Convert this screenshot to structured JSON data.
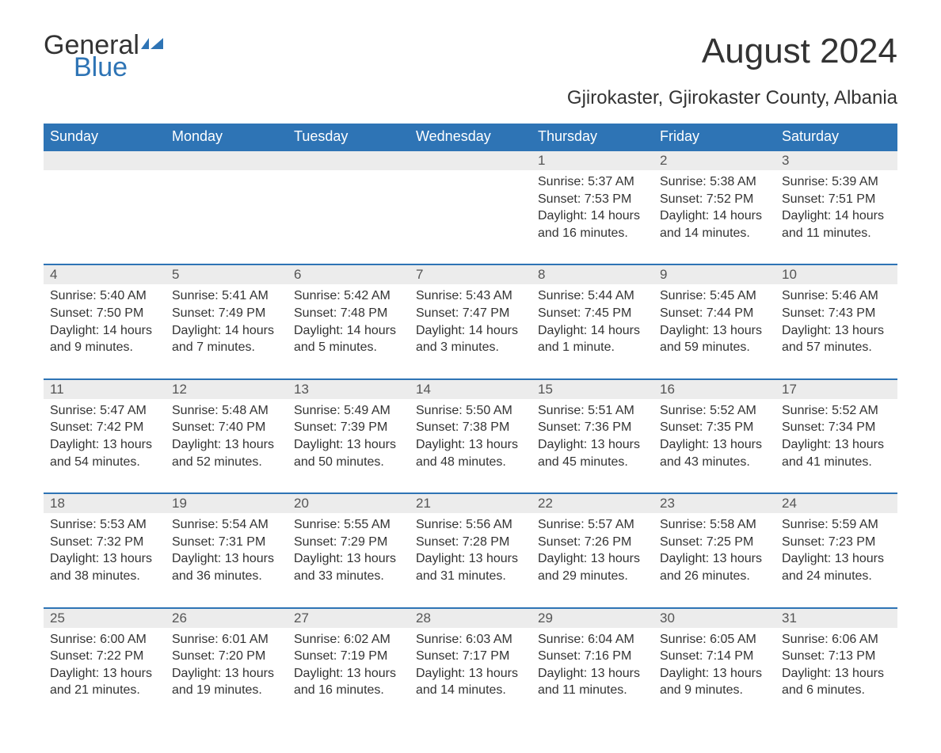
{
  "logo": {
    "text1": "General",
    "text2": "Blue"
  },
  "title": "August 2024",
  "subtitle": "Gjirokaster, Gjirokaster County, Albania",
  "colors": {
    "header_bg": "#2e74b5",
    "header_text": "#ffffff",
    "daynum_bg": "#ececec",
    "row_border": "#2e74b5",
    "body_text": "#333333",
    "logo_blue": "#2e74b5"
  },
  "weekdays": [
    "Sunday",
    "Monday",
    "Tuesday",
    "Wednesday",
    "Thursday",
    "Friday",
    "Saturday"
  ],
  "weeks": [
    {
      "days": [
        null,
        null,
        null,
        null,
        {
          "n": "1",
          "sunrise": "5:37 AM",
          "sunset": "7:53 PM",
          "daylight": "14 hours and 16 minutes."
        },
        {
          "n": "2",
          "sunrise": "5:38 AM",
          "sunset": "7:52 PM",
          "daylight": "14 hours and 14 minutes."
        },
        {
          "n": "3",
          "sunrise": "5:39 AM",
          "sunset": "7:51 PM",
          "daylight": "14 hours and 11 minutes."
        }
      ]
    },
    {
      "days": [
        {
          "n": "4",
          "sunrise": "5:40 AM",
          "sunset": "7:50 PM",
          "daylight": "14 hours and 9 minutes."
        },
        {
          "n": "5",
          "sunrise": "5:41 AM",
          "sunset": "7:49 PM",
          "daylight": "14 hours and 7 minutes."
        },
        {
          "n": "6",
          "sunrise": "5:42 AM",
          "sunset": "7:48 PM",
          "daylight": "14 hours and 5 minutes."
        },
        {
          "n": "7",
          "sunrise": "5:43 AM",
          "sunset": "7:47 PM",
          "daylight": "14 hours and 3 minutes."
        },
        {
          "n": "8",
          "sunrise": "5:44 AM",
          "sunset": "7:45 PM",
          "daylight": "14 hours and 1 minute."
        },
        {
          "n": "9",
          "sunrise": "5:45 AM",
          "sunset": "7:44 PM",
          "daylight": "13 hours and 59 minutes."
        },
        {
          "n": "10",
          "sunrise": "5:46 AM",
          "sunset": "7:43 PM",
          "daylight": "13 hours and 57 minutes."
        }
      ]
    },
    {
      "days": [
        {
          "n": "11",
          "sunrise": "5:47 AM",
          "sunset": "7:42 PM",
          "daylight": "13 hours and 54 minutes."
        },
        {
          "n": "12",
          "sunrise": "5:48 AM",
          "sunset": "7:40 PM",
          "daylight": "13 hours and 52 minutes."
        },
        {
          "n": "13",
          "sunrise": "5:49 AM",
          "sunset": "7:39 PM",
          "daylight": "13 hours and 50 minutes."
        },
        {
          "n": "14",
          "sunrise": "5:50 AM",
          "sunset": "7:38 PM",
          "daylight": "13 hours and 48 minutes."
        },
        {
          "n": "15",
          "sunrise": "5:51 AM",
          "sunset": "7:36 PM",
          "daylight": "13 hours and 45 minutes."
        },
        {
          "n": "16",
          "sunrise": "5:52 AM",
          "sunset": "7:35 PM",
          "daylight": "13 hours and 43 minutes."
        },
        {
          "n": "17",
          "sunrise": "5:52 AM",
          "sunset": "7:34 PM",
          "daylight": "13 hours and 41 minutes."
        }
      ]
    },
    {
      "days": [
        {
          "n": "18",
          "sunrise": "5:53 AM",
          "sunset": "7:32 PM",
          "daylight": "13 hours and 38 minutes."
        },
        {
          "n": "19",
          "sunrise": "5:54 AM",
          "sunset": "7:31 PM",
          "daylight": "13 hours and 36 minutes."
        },
        {
          "n": "20",
          "sunrise": "5:55 AM",
          "sunset": "7:29 PM",
          "daylight": "13 hours and 33 minutes."
        },
        {
          "n": "21",
          "sunrise": "5:56 AM",
          "sunset": "7:28 PM",
          "daylight": "13 hours and 31 minutes."
        },
        {
          "n": "22",
          "sunrise": "5:57 AM",
          "sunset": "7:26 PM",
          "daylight": "13 hours and 29 minutes."
        },
        {
          "n": "23",
          "sunrise": "5:58 AM",
          "sunset": "7:25 PM",
          "daylight": "13 hours and 26 minutes."
        },
        {
          "n": "24",
          "sunrise": "5:59 AM",
          "sunset": "7:23 PM",
          "daylight": "13 hours and 24 minutes."
        }
      ]
    },
    {
      "days": [
        {
          "n": "25",
          "sunrise": "6:00 AM",
          "sunset": "7:22 PM",
          "daylight": "13 hours and 21 minutes."
        },
        {
          "n": "26",
          "sunrise": "6:01 AM",
          "sunset": "7:20 PM",
          "daylight": "13 hours and 19 minutes."
        },
        {
          "n": "27",
          "sunrise": "6:02 AM",
          "sunset": "7:19 PM",
          "daylight": "13 hours and 16 minutes."
        },
        {
          "n": "28",
          "sunrise": "6:03 AM",
          "sunset": "7:17 PM",
          "daylight": "13 hours and 14 minutes."
        },
        {
          "n": "29",
          "sunrise": "6:04 AM",
          "sunset": "7:16 PM",
          "daylight": "13 hours and 11 minutes."
        },
        {
          "n": "30",
          "sunrise": "6:05 AM",
          "sunset": "7:14 PM",
          "daylight": "13 hours and 9 minutes."
        },
        {
          "n": "31",
          "sunrise": "6:06 AM",
          "sunset": "7:13 PM",
          "daylight": "13 hours and 6 minutes."
        }
      ]
    }
  ],
  "labels": {
    "sunrise": "Sunrise: ",
    "sunset": "Sunset: ",
    "daylight": "Daylight: "
  }
}
